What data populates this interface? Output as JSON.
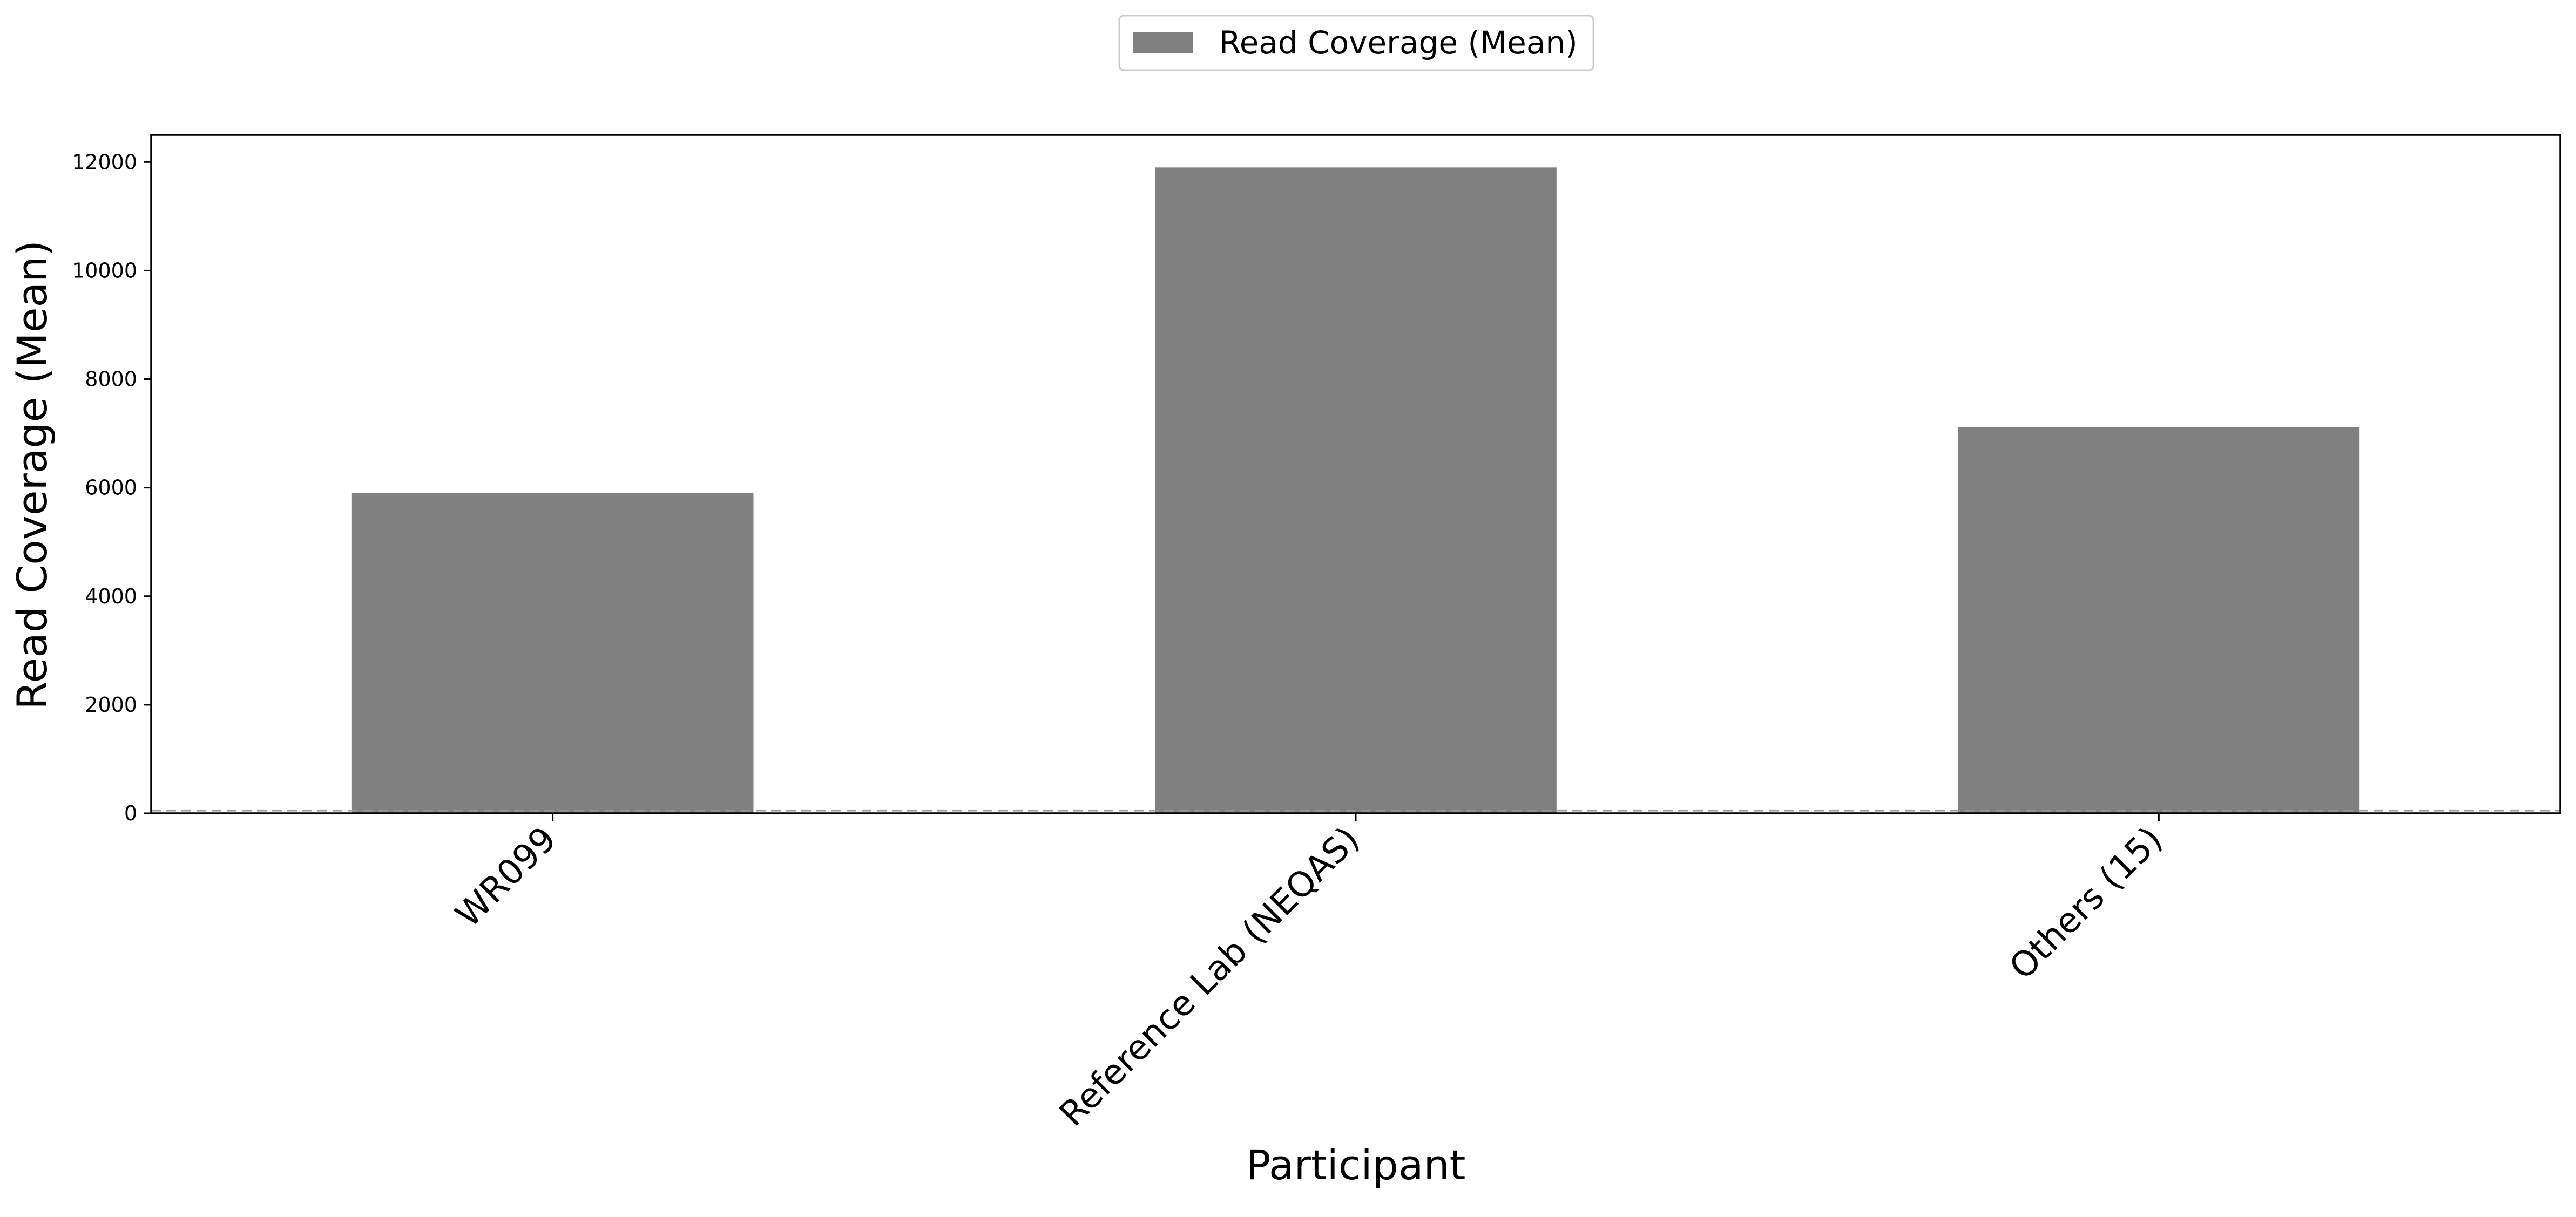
{
  "chart_data": {
    "type": "bar",
    "categories": [
      "WR099",
      "Reference Lab (NEQAS)",
      "Others (15)"
    ],
    "series": [
      {
        "name": "Read Coverage (Mean)",
        "values": [
          5900,
          11900,
          7120
        ]
      }
    ],
    "xlabel": "Participant",
    "ylabel": "Read Coverage (Mean)",
    "ylim": [
      0,
      12500
    ],
    "yticks": [
      0,
      2000,
      4000,
      6000,
      8000,
      10000,
      12000
    ],
    "reference_line": {
      "value": 50,
      "style": "dashed"
    },
    "grid": false,
    "legend_position": "top-center",
    "colors": {
      "bar": "#808080",
      "reference_line": "#999999",
      "axis": "#000000"
    }
  }
}
